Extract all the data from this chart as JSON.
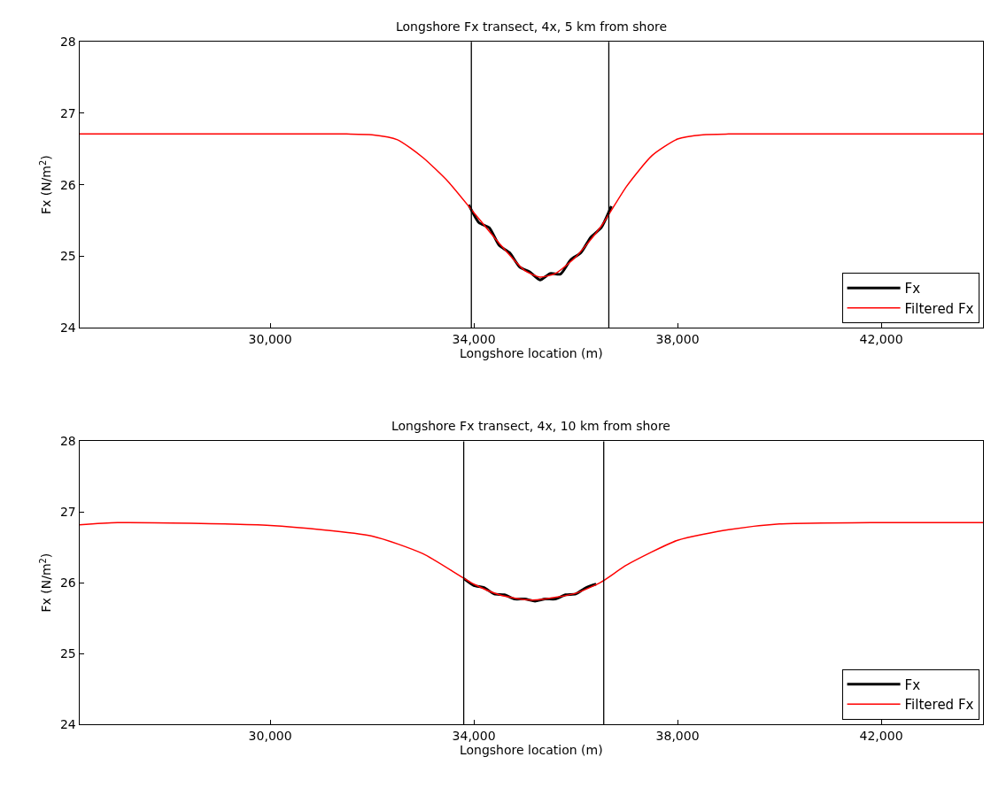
{
  "chart_data": [
    {
      "type": "line",
      "title": "Longshore Fx transect, 4x, 5 km from shore",
      "xlabel": "Longshore location (m)",
      "ylabel": "Fx (N/m$^{2}$)",
      "xlim": [
        26250,
        44000
      ],
      "xticks": [
        {
          "value": 30000,
          "label": "30,000"
        },
        {
          "value": 34000,
          "label": "34,000"
        },
        {
          "value": 38000,
          "label": "38,000"
        },
        {
          "value": 42000,
          "label": "42,000"
        }
      ],
      "ylim": [
        24,
        28
      ],
      "yticks": [
        24,
        25,
        26,
        27,
        28
      ],
      "legend": "bottom right",
      "marker": "none",
      "line_style": "solid",
      "ref_lines": [
        {
          "axis": "x",
          "value": 33950,
          "color": "#000000"
        },
        {
          "axis": "x",
          "value": 36650,
          "color": "#000000"
        }
      ],
      "series": [
        {
          "name": "Fx",
          "color": "#000000",
          "x": [
            33900,
            34100,
            34300,
            34500,
            34700,
            34900,
            35100,
            35300,
            35500,
            35700,
            35900,
            36100,
            36300,
            36500,
            36700
          ],
          "values": [
            25.72,
            25.47,
            25.4,
            25.15,
            25.05,
            24.85,
            24.78,
            24.67,
            24.76,
            24.75,
            24.95,
            25.05,
            25.27,
            25.4,
            25.7
          ]
        },
        {
          "name": "Filtered Fx",
          "color": "#ff0000",
          "x": [
            26250,
            31500,
            32000,
            32500,
            33000,
            33500,
            34000,
            34500,
            35000,
            35300,
            35600,
            36000,
            36500,
            37000,
            37500,
            38000,
            38500,
            39000,
            44000
          ],
          "values": [
            26.71,
            26.71,
            26.7,
            26.63,
            26.38,
            26.04,
            25.61,
            25.18,
            24.8,
            24.71,
            24.76,
            24.99,
            25.42,
            25.98,
            26.41,
            26.64,
            26.7,
            26.71,
            26.71
          ]
        }
      ]
    },
    {
      "type": "line",
      "title": "Longshore Fx transect, 4x, 10 km from shore",
      "xlabel": "Longshore location (m)",
      "ylabel": "Fx (N/m$^{2}$)",
      "xlim": [
        26250,
        44000
      ],
      "xticks": [
        {
          "value": 30000,
          "label": "30,000"
        },
        {
          "value": 34000,
          "label": "34,000"
        },
        {
          "value": 38000,
          "label": "38,000"
        },
        {
          "value": 42000,
          "label": "42,000"
        }
      ],
      "ylim": [
        24,
        28
      ],
      "yticks": [
        24,
        25,
        26,
        27,
        28
      ],
      "legend": "bottom right",
      "marker": "none",
      "line_style": "solid",
      "ref_lines": [
        {
          "axis": "x",
          "value": 33800,
          "color": "#000000"
        },
        {
          "axis": "x",
          "value": 36550,
          "color": "#000000"
        }
      ],
      "series": [
        {
          "name": "Fx",
          "color": "#000000",
          "x": [
            33800,
            34000,
            34200,
            34400,
            34600,
            34800,
            35000,
            35200,
            35400,
            35600,
            35800,
            36000,
            36200,
            36400
          ],
          "values": [
            26.06,
            25.96,
            25.93,
            25.84,
            25.83,
            25.77,
            25.77,
            25.74,
            25.77,
            25.77,
            25.83,
            25.84,
            25.93,
            25.98
          ]
        },
        {
          "name": "Filtered Fx",
          "color": "#ff0000",
          "x": [
            26250,
            27000,
            30000,
            32000,
            33000,
            34000,
            34500,
            35000,
            35300,
            36000,
            36500,
            37000,
            38000,
            39000,
            40000,
            42000,
            44000
          ],
          "values": [
            26.82,
            26.85,
            26.81,
            26.66,
            26.41,
            25.98,
            25.83,
            25.76,
            25.76,
            25.85,
            26.01,
            26.25,
            26.6,
            26.75,
            26.83,
            26.85,
            26.85
          ]
        }
      ]
    }
  ]
}
